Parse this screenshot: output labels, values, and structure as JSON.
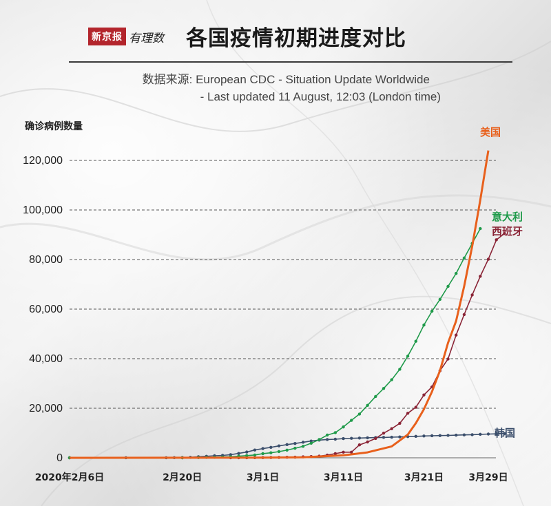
{
  "header": {
    "brand_box": "新京报",
    "brand_script": "有理数",
    "title": "各国疫情初期进度对比",
    "source_line1": "数据来源: European CDC  -  Situation Update Worldwide",
    "source_line2": "-  Last updated 11 August, 12:03 (London time)"
  },
  "chart_data": {
    "type": "line",
    "title": "各国疫情初期进度对比",
    "ylabel": "确诊病例数量",
    "xlabel": "",
    "ylim": [
      0,
      125000
    ],
    "yticks": [
      0,
      20000,
      40000,
      60000,
      80000,
      100000,
      120000
    ],
    "ytick_labels": [
      "0",
      "20,000",
      "40,000",
      "60,000",
      "80,000",
      "100,000",
      "120,000"
    ],
    "grid": "horizontal dashed",
    "x_start": "2020-02-06",
    "x_end": "2020-03-29",
    "xticks": [
      {
        "date": "2020-02-06",
        "label": "2020年2月6日"
      },
      {
        "date": "2020-02-20",
        "label": "2月20日"
      },
      {
        "date": "2020-03-01",
        "label": "3月1日"
      },
      {
        "date": "2020-03-11",
        "label": "3月11日"
      },
      {
        "date": "2020-03-21",
        "label": "3月21日"
      },
      {
        "date": "2020-03-29",
        "label": "3月29日"
      }
    ],
    "series": [
      {
        "name": "美国",
        "color": "#e8601c",
        "markers": false,
        "points": [
          [
            "2020-02-06",
            12
          ],
          [
            "2020-02-20",
            15
          ],
          [
            "2020-03-01",
            75
          ],
          [
            "2020-03-06",
            220
          ],
          [
            "2020-03-11",
            1000
          ],
          [
            "2020-03-14",
            2200
          ],
          [
            "2020-03-17",
            4600
          ],
          [
            "2020-03-19",
            9400
          ],
          [
            "2020-03-20",
            14000
          ],
          [
            "2020-03-21",
            19600
          ],
          [
            "2020-03-22",
            26700
          ],
          [
            "2020-03-23",
            35200
          ],
          [
            "2020-03-24",
            46400
          ],
          [
            "2020-03-25",
            55200
          ],
          [
            "2020-03-26",
            69200
          ],
          [
            "2020-03-27",
            85400
          ],
          [
            "2020-03-28",
            104000
          ],
          [
            "2020-03-29",
            124000
          ]
        ]
      },
      {
        "name": "意大利",
        "color": "#1f9a4a",
        "markers": true,
        "points": [
          [
            "2020-02-06",
            2
          ],
          [
            "2020-02-20",
            3
          ],
          [
            "2020-02-22",
            79
          ],
          [
            "2020-02-23",
            150
          ],
          [
            "2020-02-24",
            229
          ],
          [
            "2020-02-25",
            322
          ],
          [
            "2020-02-26",
            400
          ],
          [
            "2020-02-27",
            650
          ],
          [
            "2020-02-28",
            888
          ],
          [
            "2020-02-29",
            1128
          ],
          [
            "2020-03-01",
            1694
          ],
          [
            "2020-03-02",
            2036
          ],
          [
            "2020-03-03",
            2502
          ],
          [
            "2020-03-04",
            3089
          ],
          [
            "2020-03-05",
            3858
          ],
          [
            "2020-03-06",
            4636
          ],
          [
            "2020-03-07",
            5883
          ],
          [
            "2020-03-08",
            7375
          ],
          [
            "2020-03-09",
            9172
          ],
          [
            "2020-03-10",
            10149
          ],
          [
            "2020-03-11",
            12462
          ],
          [
            "2020-03-12",
            15113
          ],
          [
            "2020-03-13",
            17660
          ],
          [
            "2020-03-14",
            21157
          ],
          [
            "2020-03-15",
            24747
          ],
          [
            "2020-03-16",
            27980
          ],
          [
            "2020-03-17",
            31506
          ],
          [
            "2020-03-18",
            35713
          ],
          [
            "2020-03-19",
            41035
          ],
          [
            "2020-03-20",
            47021
          ],
          [
            "2020-03-21",
            53578
          ],
          [
            "2020-03-22",
            59138
          ],
          [
            "2020-03-23",
            63927
          ],
          [
            "2020-03-24",
            69176
          ],
          [
            "2020-03-25",
            74386
          ],
          [
            "2020-03-26",
            80589
          ],
          [
            "2020-03-27",
            86498
          ],
          [
            "2020-03-28",
            92472
          ]
        ]
      },
      {
        "name": "西班牙",
        "color": "#8a2436",
        "markers": true,
        "points": [
          [
            "2020-02-06",
            1
          ],
          [
            "2020-02-20",
            2
          ],
          [
            "2020-02-26",
            13
          ],
          [
            "2020-02-27",
            15
          ],
          [
            "2020-02-28",
            32
          ],
          [
            "2020-02-29",
            45
          ],
          [
            "2020-03-01",
            84
          ],
          [
            "2020-03-02",
            120
          ],
          [
            "2020-03-03",
            165
          ],
          [
            "2020-03-04",
            222
          ],
          [
            "2020-03-05",
            259
          ],
          [
            "2020-03-06",
            400
          ],
          [
            "2020-03-07",
            500
          ],
          [
            "2020-03-08",
            673
          ],
          [
            "2020-03-09",
            1073
          ],
          [
            "2020-03-10",
            1695
          ],
          [
            "2020-03-11",
            2277
          ],
          [
            "2020-03-12",
            2277
          ],
          [
            "2020-03-13",
            5232
          ],
          [
            "2020-03-14",
            6391
          ],
          [
            "2020-03-15",
            7798
          ],
          [
            "2020-03-16",
            9942
          ],
          [
            "2020-03-17",
            11748
          ],
          [
            "2020-03-18",
            13910
          ],
          [
            "2020-03-19",
            17963
          ],
          [
            "2020-03-20",
            20410
          ],
          [
            "2020-03-21",
            25374
          ],
          [
            "2020-03-22",
            28603
          ],
          [
            "2020-03-23",
            35136
          ],
          [
            "2020-03-24",
            39885
          ],
          [
            "2020-03-25",
            49515
          ],
          [
            "2020-03-26",
            57786
          ],
          [
            "2020-03-27",
            65719
          ],
          [
            "2020-03-28",
            73232
          ],
          [
            "2020-03-29",
            80110
          ],
          [
            "2020-03-30",
            87956
          ],
          [
            "2020-03-31",
            90500
          ]
        ]
      },
      {
        "name": "韩国",
        "color": "#3b4e6b",
        "markers": true,
        "points": [
          [
            "2020-02-06",
            23
          ],
          [
            "2020-02-13",
            28
          ],
          [
            "2020-02-18",
            31
          ],
          [
            "2020-02-19",
            51
          ],
          [
            "2020-02-20",
            104
          ],
          [
            "2020-02-21",
            204
          ],
          [
            "2020-02-22",
            433
          ],
          [
            "2020-02-23",
            602
          ],
          [
            "2020-02-24",
            833
          ],
          [
            "2020-02-25",
            977
          ],
          [
            "2020-02-26",
            1261
          ],
          [
            "2020-02-27",
            1766
          ],
          [
            "2020-02-28",
            2337
          ],
          [
            "2020-02-29",
            3150
          ],
          [
            "2020-03-01",
            3736
          ],
          [
            "2020-03-02",
            4212
          ],
          [
            "2020-03-03",
            4812
          ],
          [
            "2020-03-04",
            5328
          ],
          [
            "2020-03-05",
            5766
          ],
          [
            "2020-03-06",
            6284
          ],
          [
            "2020-03-07",
            6767
          ],
          [
            "2020-03-08",
            7134
          ],
          [
            "2020-03-09",
            7382
          ],
          [
            "2020-03-10",
            7513
          ],
          [
            "2020-03-11",
            7755
          ],
          [
            "2020-03-12",
            7869
          ],
          [
            "2020-03-13",
            7979
          ],
          [
            "2020-03-14",
            8086
          ],
          [
            "2020-03-15",
            8162
          ],
          [
            "2020-03-16",
            8236
          ],
          [
            "2020-03-17",
            8320
          ],
          [
            "2020-03-18",
            8413
          ],
          [
            "2020-03-19",
            8565
          ],
          [
            "2020-03-20",
            8652
          ],
          [
            "2020-03-21",
            8799
          ],
          [
            "2020-03-22",
            8897
          ],
          [
            "2020-03-23",
            8961
          ],
          [
            "2020-03-24",
            9037
          ],
          [
            "2020-03-25",
            9137
          ],
          [
            "2020-03-26",
            9241
          ],
          [
            "2020-03-27",
            9332
          ],
          [
            "2020-03-28",
            9478
          ],
          [
            "2020-03-29",
            9583
          ],
          [
            "2020-03-30",
            9661
          ],
          [
            "2020-03-31",
            9786
          ]
        ]
      }
    ]
  }
}
